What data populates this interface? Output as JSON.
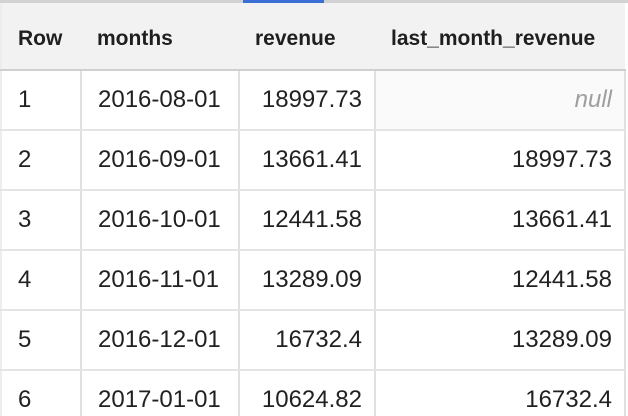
{
  "colors": {
    "accent_blue": "#3b6fd6",
    "header_background": "#f2f2f2",
    "null_text": "#9e9e9e",
    "body_text": "#212121"
  },
  "table": {
    "columns": [
      {
        "label": "Row"
      },
      {
        "label": "months"
      },
      {
        "label": "revenue"
      },
      {
        "label": "last_month_revenue"
      }
    ],
    "rows": [
      {
        "row": "1",
        "months": "2016-08-01",
        "revenue": "18997.73",
        "last_month_revenue": "null"
      },
      {
        "row": "2",
        "months": "2016-09-01",
        "revenue": "13661.41",
        "last_month_revenue": "18997.73"
      },
      {
        "row": "3",
        "months": "2016-10-01",
        "revenue": "12441.58",
        "last_month_revenue": "13661.41"
      },
      {
        "row": "4",
        "months": "2016-11-01",
        "revenue": "13289.09",
        "last_month_revenue": "12441.58"
      },
      {
        "row": "5",
        "months": "2016-12-01",
        "revenue": "16732.4",
        "last_month_revenue": "13289.09"
      },
      {
        "row": "6",
        "months": "2017-01-01",
        "revenue": "10624.82",
        "last_month_revenue": "16732.4"
      }
    ]
  }
}
